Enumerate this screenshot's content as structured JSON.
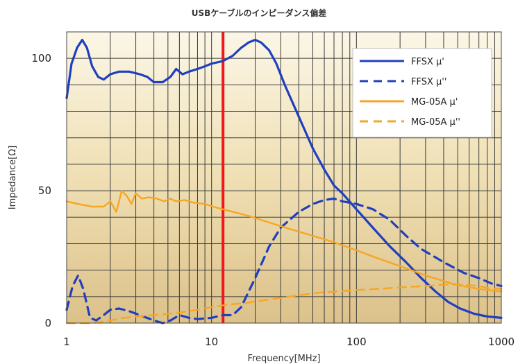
{
  "chart_data": {
    "type": "line",
    "title": "USBケーブルのインピーダンス偏差",
    "xlabel": "Frequency[MHz]",
    "ylabel": "Impedance[Ω]",
    "x_scale": "log",
    "xlim": [
      1,
      1000
    ],
    "ylim": [
      0,
      110
    ],
    "x_ticks": [
      {
        "value": 1,
        "label": "1"
      },
      {
        "value": 10,
        "label": "10"
      },
      {
        "value": 100,
        "label": "100"
      },
      {
        "value": 1000,
        "label": "1000"
      }
    ],
    "y_ticks": [
      {
        "value": 0,
        "label": "0"
      },
      {
        "value": 50,
        "label": "50"
      },
      {
        "value": 100,
        "label": "100"
      }
    ],
    "grid": true,
    "legend_position": "top-right",
    "marker_line": {
      "x": 12,
      "color": "#f01818"
    },
    "series": [
      {
        "name": "FFSX μ'",
        "color": "#1f3fbf",
        "dash": "solid",
        "points": [
          [
            1,
            85
          ],
          [
            1.08,
            98
          ],
          [
            1.18,
            104
          ],
          [
            1.28,
            107
          ],
          [
            1.38,
            104
          ],
          [
            1.5,
            97
          ],
          [
            1.65,
            93
          ],
          [
            1.8,
            92
          ],
          [
            2,
            94
          ],
          [
            2.3,
            95
          ],
          [
            2.7,
            95
          ],
          [
            3.2,
            94
          ],
          [
            3.6,
            93
          ],
          [
            4,
            91
          ],
          [
            4.6,
            91
          ],
          [
            5.2,
            93
          ],
          [
            5.7,
            96
          ],
          [
            6.3,
            94
          ],
          [
            7,
            95
          ],
          [
            8,
            96
          ],
          [
            9,
            97
          ],
          [
            10,
            98
          ],
          [
            12,
            99
          ],
          [
            14,
            101
          ],
          [
            16,
            104
          ],
          [
            18,
            106
          ],
          [
            20,
            107
          ],
          [
            22,
            106
          ],
          [
            25,
            103
          ],
          [
            28,
            98
          ],
          [
            32,
            90
          ],
          [
            40,
            78
          ],
          [
            50,
            66
          ],
          [
            60,
            58
          ],
          [
            70,
            52
          ],
          [
            80,
            49
          ],
          [
            100,
            43
          ],
          [
            130,
            36
          ],
          [
            170,
            29
          ],
          [
            220,
            23
          ],
          [
            280,
            17
          ],
          [
            350,
            12
          ],
          [
            430,
            8
          ],
          [
            520,
            5.5
          ],
          [
            650,
            3.5
          ],
          [
            800,
            2.5
          ],
          [
            1000,
            2
          ]
        ]
      },
      {
        "name": "FFSX μ''",
        "color": "#1f3fbf",
        "dash": "dashed",
        "points": [
          [
            1,
            5
          ],
          [
            1.1,
            14
          ],
          [
            1.2,
            18
          ],
          [
            1.3,
            13
          ],
          [
            1.45,
            2
          ],
          [
            1.6,
            1
          ],
          [
            1.8,
            3
          ],
          [
            2,
            5
          ],
          [
            2.3,
            5.5
          ],
          [
            2.7,
            4.5
          ],
          [
            3.2,
            3
          ],
          [
            4,
            1
          ],
          [
            4.6,
            0
          ],
          [
            5.2,
            1
          ],
          [
            6,
            3
          ],
          [
            7,
            2
          ],
          [
            8,
            1.5
          ],
          [
            10,
            2
          ],
          [
            12,
            3
          ],
          [
            14,
            3
          ],
          [
            16,
            6
          ],
          [
            20,
            17
          ],
          [
            25,
            29
          ],
          [
            30,
            36
          ],
          [
            40,
            42
          ],
          [
            50,
            45
          ],
          [
            60,
            46.5
          ],
          [
            70,
            47
          ],
          [
            80,
            46
          ],
          [
            100,
            45
          ],
          [
            130,
            43
          ],
          [
            170,
            39
          ],
          [
            220,
            33
          ],
          [
            280,
            28
          ],
          [
            400,
            23
          ],
          [
            550,
            19
          ],
          [
            700,
            17
          ],
          [
            850,
            15
          ],
          [
            1000,
            14
          ]
        ]
      },
      {
        "name": "MG-05A μ'",
        "color": "#f5a623",
        "dash": "solid",
        "points": [
          [
            1,
            46
          ],
          [
            1.2,
            45
          ],
          [
            1.5,
            44
          ],
          [
            1.8,
            44
          ],
          [
            2,
            46
          ],
          [
            2.2,
            42
          ],
          [
            2.4,
            50
          ],
          [
            2.6,
            48
          ],
          [
            2.8,
            45
          ],
          [
            3,
            49
          ],
          [
            3.3,
            47
          ],
          [
            3.7,
            47.5
          ],
          [
            4.2,
            47
          ],
          [
            4.7,
            46
          ],
          [
            5.2,
            47
          ],
          [
            5.7,
            46
          ],
          [
            6.5,
            46.5
          ],
          [
            7.5,
            45.5
          ],
          [
            9,
            45
          ],
          [
            11,
            43.5
          ],
          [
            13,
            42.5
          ],
          [
            18,
            40.5
          ],
          [
            25,
            38
          ],
          [
            35,
            35.5
          ],
          [
            50,
            33
          ],
          [
            70,
            30.5
          ],
          [
            100,
            27.5
          ],
          [
            140,
            24.5
          ],
          [
            200,
            21.5
          ],
          [
            300,
            18
          ],
          [
            450,
            15
          ],
          [
            600,
            13.5
          ],
          [
            800,
            12.5
          ],
          [
            1000,
            12
          ]
        ]
      },
      {
        "name": "MG-05A μ''",
        "color": "#f5a623",
        "dash": "dashed",
        "points": [
          [
            1,
            0
          ],
          [
            1.2,
            0
          ],
          [
            1.5,
            0
          ],
          [
            2,
            1
          ],
          [
            2.5,
            2
          ],
          [
            3,
            2.5
          ],
          [
            4,
            3
          ],
          [
            5,
            3.5
          ],
          [
            6,
            4
          ],
          [
            8,
            5
          ],
          [
            10,
            6
          ],
          [
            13,
            7
          ],
          [
            17,
            7.5
          ],
          [
            22,
            8.5
          ],
          [
            30,
            9.5
          ],
          [
            40,
            10.5
          ],
          [
            55,
            11.5
          ],
          [
            75,
            12
          ],
          [
            100,
            12.5
          ],
          [
            150,
            13
          ],
          [
            200,
            13.5
          ],
          [
            300,
            14
          ],
          [
            400,
            14.5
          ],
          [
            550,
            14.5
          ],
          [
            700,
            14
          ],
          [
            850,
            13
          ],
          [
            1000,
            13
          ]
        ]
      }
    ]
  }
}
